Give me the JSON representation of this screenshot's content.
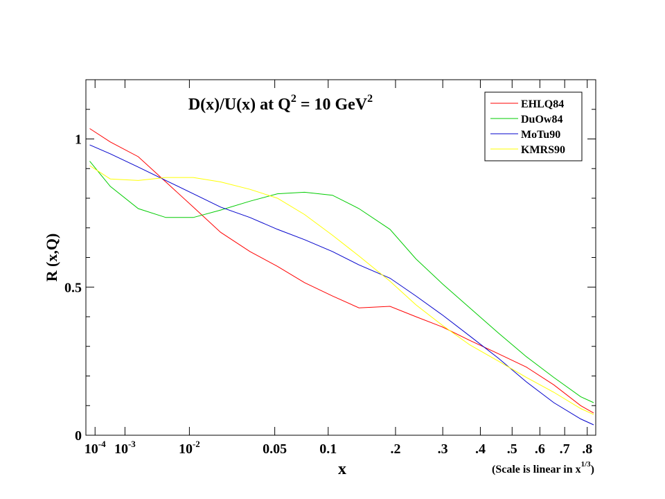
{
  "chart_data": {
    "type": "line",
    "title": {
      "text": [
        "D(x)/U(x) at Q",
        " = 10 GeV"
      ],
      "sup": [
        "2",
        "2"
      ]
    },
    "ylabel": "R (x,Q)",
    "xlabel": "x",
    "note": {
      "text": "(Scale is linear in x",
      "sup": "1/3",
      "end": ")"
    },
    "xscale": "cuberoot",
    "xlim": [
      2.7e-05,
      0.84
    ],
    "ylim": [
      0,
      1.2
    ],
    "xticks": [
      {
        "value": 0.0001,
        "label": "10",
        "sup": "-4"
      },
      {
        "value": 0.001,
        "label": "10",
        "sup": "-3"
      },
      {
        "value": 0.01,
        "label": "10",
        "sup": "-2"
      },
      0.05,
      0.1,
      {
        "value": 0.2,
        "label": ".2"
      },
      {
        "value": 0.3,
        "label": ".3"
      },
      {
        "value": 0.4,
        "label": ".4"
      },
      {
        "value": 0.5,
        "label": ".5"
      },
      {
        "value": 0.6,
        "label": ".6"
      },
      {
        "value": 0.7,
        "label": ".7"
      },
      {
        "value": 0.8,
        "label": ".8"
      }
    ],
    "yticks": [
      0,
      0.5,
      1
    ],
    "yminor_ticks": [
      0.1,
      0.2,
      0.3,
      0.4,
      0.6,
      0.7,
      0.8,
      0.9,
      1.1
    ],
    "legend": "upper right",
    "x": [
      5e-05,
      0.0004,
      0.0019,
      0.0052,
      0.011,
      0.02,
      0.034,
      0.052,
      0.075,
      0.105,
      0.14,
      0.19,
      0.24,
      0.3,
      0.37,
      0.455,
      0.55,
      0.655,
      0.77,
      0.83
    ],
    "series": [
      {
        "name": "EHLQ84",
        "color": "#ff0000",
        "values": [
          1.035,
          0.99,
          0.94,
          0.855,
          0.77,
          0.685,
          0.62,
          0.57,
          0.515,
          0.47,
          0.43,
          0.435,
          0.4,
          0.365,
          0.32,
          0.275,
          0.23,
          0.17,
          0.1,
          0.075
        ]
      },
      {
        "name": "DuOw84",
        "color": "#00cc00",
        "values": [
          0.925,
          0.84,
          0.765,
          0.735,
          0.735,
          0.76,
          0.79,
          0.815,
          0.82,
          0.81,
          0.765,
          0.695,
          0.595,
          0.51,
          0.43,
          0.345,
          0.265,
          0.195,
          0.13,
          0.11
        ]
      },
      {
        "name": "MoTu90",
        "color": "#0000cc",
        "values": [
          0.98,
          0.95,
          0.905,
          0.86,
          0.815,
          0.77,
          0.735,
          0.695,
          0.66,
          0.62,
          0.575,
          0.53,
          0.47,
          0.405,
          0.335,
          0.26,
          0.18,
          0.11,
          0.055,
          0.035
        ]
      },
      {
        "name": "KMRS90",
        "color": "#ffff00",
        "values": [
          0.91,
          0.865,
          0.86,
          0.87,
          0.87,
          0.855,
          0.83,
          0.8,
          0.745,
          0.675,
          0.605,
          0.52,
          0.44,
          0.37,
          0.305,
          0.25,
          0.195,
          0.145,
          0.09,
          0.07
        ]
      }
    ]
  }
}
